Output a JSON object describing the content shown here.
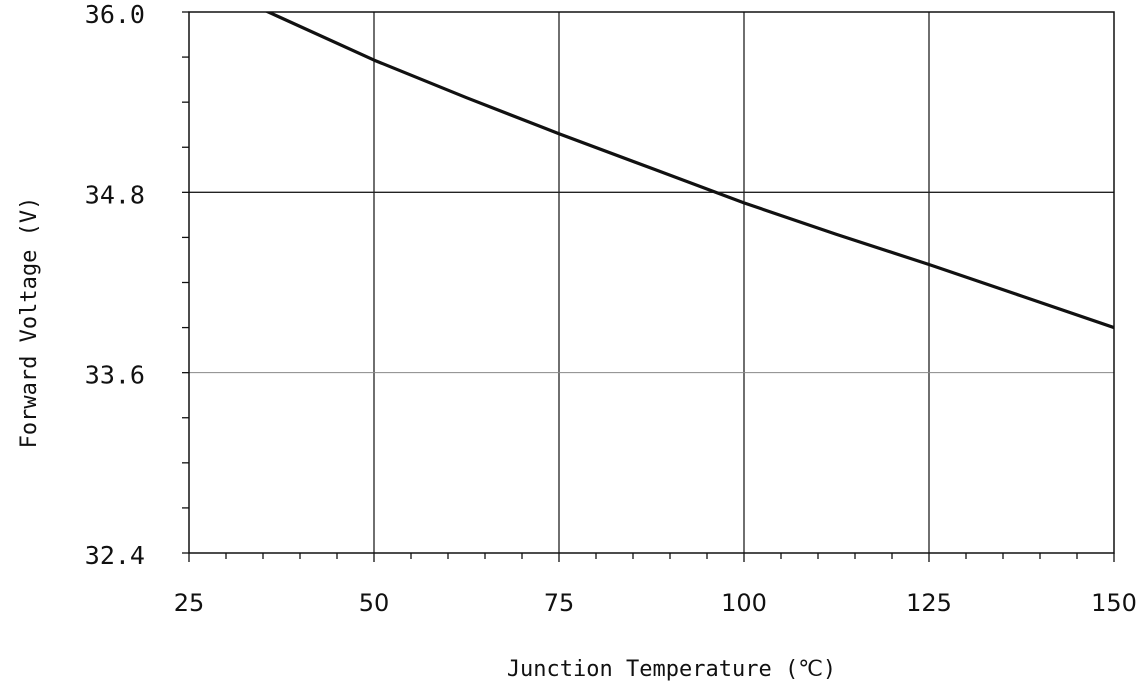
{
  "chart_data": {
    "type": "line",
    "title": "",
    "xlabel": "Junction Temperature (℃)",
    "ylabel": "Forward Voltage (V)",
    "xlim": [
      25,
      150
    ],
    "ylim": [
      32.4,
      36.0
    ],
    "x_ticks": [
      25,
      50,
      75,
      100,
      125,
      150
    ],
    "x_tick_labels": [
      "25",
      "50",
      "75",
      "100",
      "125",
      "150"
    ],
    "y_ticks": [
      32.4,
      33.6,
      34.8,
      36.0
    ],
    "y_tick_labels": [
      "32.4",
      "33.6",
      "34.8",
      "36.0"
    ],
    "grid": true,
    "legend": "none",
    "series": [
      {
        "x": [
          25,
          37.5,
          50,
          62.5,
          75,
          87.5,
          100,
          112.5,
          125,
          137.5,
          150
        ],
        "y": [
          36.24,
          35.96,
          35.68,
          35.43,
          35.19,
          34.96,
          34.73,
          34.52,
          34.32,
          34.11,
          33.9
        ]
      }
    ],
    "colors": {
      "line": "#111111",
      "grid": "#222222",
      "axis": "#111111"
    }
  }
}
